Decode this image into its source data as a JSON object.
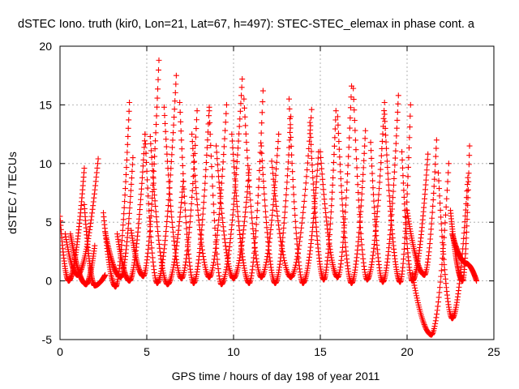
{
  "chart_data": {
    "type": "scatter",
    "title": "dSTEC Iono. truth (kir0, Lon=21, Lat=67, h=497): STEC-STEC_elemax in phase cont. a",
    "xlabel": "GPS time / hours of day 198 of year 2011",
    "ylabel": "dSTEC  / TECUs",
    "xlim": [
      0,
      25
    ],
    "ylim": [
      -5,
      20
    ],
    "x_ticks": [
      0,
      5,
      10,
      15,
      20,
      25
    ],
    "y_ticks": [
      -5,
      0,
      5,
      10,
      15,
      20
    ],
    "x_tick_labels": [
      "0",
      "5",
      "10",
      "15",
      "20",
      "25"
    ],
    "y_tick_labels": [
      "-5",
      "0",
      "5",
      "10",
      "15",
      "20"
    ],
    "grid": true,
    "marker": "+",
    "color": "#ff0000",
    "arcs": [
      {
        "start": 0.0,
        "min_t": 0.5,
        "min_v": 0.0,
        "end": 1.4,
        "start_v": 5.5,
        "end_v": 9.6
      },
      {
        "start": 0.3,
        "min_t": 1.0,
        "min_v": 0.5,
        "end": 2.2,
        "start_v": 4.0,
        "end_v": 10.4
      },
      {
        "start": 0.6,
        "min_t": 1.5,
        "min_v": -0.3,
        "end": 2.0,
        "start_v": 4.0,
        "end_v": 3.0
      },
      {
        "start": 1.4,
        "min_t": 2.0,
        "min_v": -0.4,
        "end": 2.6,
        "start_v": 6.5,
        "end_v": 0.5
      },
      {
        "start": 2.5,
        "min_t": 3.2,
        "min_v": -0.5,
        "end": 4.0,
        "start_v": 5.8,
        "end_v": 15.2
      },
      {
        "start": 2.6,
        "min_t": 3.5,
        "min_v": 0.3,
        "end": 4.2,
        "start_v": 4.2,
        "end_v": 10.5
      },
      {
        "start": 3.3,
        "min_t": 4.0,
        "min_v": 0.0,
        "end": 4.9,
        "start_v": 4.0,
        "end_v": 12.5
      },
      {
        "start": 4.1,
        "min_t": 4.8,
        "min_v": 0.4,
        "end": 5.7,
        "start_v": 4.3,
        "end_v": 18.8
      },
      {
        "start": 4.9,
        "min_t": 5.6,
        "min_v": -0.2,
        "end": 6.7,
        "start_v": 12.5,
        "end_v": 17.5
      },
      {
        "start": 5.2,
        "min_t": 6.2,
        "min_v": -0.3,
        "end": 7.1,
        "start_v": 12.3,
        "end_v": 8.5
      },
      {
        "start": 6.0,
        "min_t": 7.0,
        "min_v": 0.2,
        "end": 7.9,
        "start_v": 14.8,
        "end_v": 14.5
      },
      {
        "start": 6.9,
        "min_t": 7.7,
        "min_v": -0.2,
        "end": 8.6,
        "start_v": 15.2,
        "end_v": 14.8
      },
      {
        "start": 7.6,
        "min_t": 8.6,
        "min_v": 0.3,
        "end": 9.6,
        "start_v": 12.5,
        "end_v": 15.0
      },
      {
        "start": 8.6,
        "min_t": 9.3,
        "min_v": -0.3,
        "end": 10.5,
        "start_v": 14.5,
        "end_v": 17.2
      },
      {
        "start": 9.0,
        "min_t": 10.0,
        "min_v": 0.2,
        "end": 10.9,
        "start_v": 11.5,
        "end_v": 9.5
      },
      {
        "start": 9.9,
        "min_t": 10.9,
        "min_v": -0.2,
        "end": 11.7,
        "start_v": 12.5,
        "end_v": 16.2
      },
      {
        "start": 10.6,
        "min_t": 11.6,
        "min_v": 0.3,
        "end": 12.6,
        "start_v": 15.5,
        "end_v": 12.5
      },
      {
        "start": 11.6,
        "min_t": 12.4,
        "min_v": -0.2,
        "end": 13.3,
        "start_v": 11.5,
        "end_v": 14.0
      },
      {
        "start": 12.2,
        "min_t": 13.3,
        "min_v": 0.3,
        "end": 14.5,
        "start_v": 10.2,
        "end_v": 14.6
      },
      {
        "start": 13.2,
        "min_t": 14.0,
        "min_v": -0.2,
        "end": 14.9,
        "start_v": 15.5,
        "end_v": 11.0
      },
      {
        "start": 14.4,
        "min_t": 15.2,
        "min_v": 0.1,
        "end": 15.9,
        "start_v": 13.5,
        "end_v": 14.5
      },
      {
        "start": 15.0,
        "min_t": 16.0,
        "min_v": 0.3,
        "end": 16.8,
        "start_v": 11.0,
        "end_v": 16.6
      },
      {
        "start": 16.0,
        "min_t": 16.8,
        "min_v": -0.2,
        "end": 17.6,
        "start_v": 14.0,
        "end_v": 12.8
      },
      {
        "start": 16.9,
        "min_t": 17.7,
        "min_v": 0.1,
        "end": 18.7,
        "start_v": 16.4,
        "end_v": 15.2
      },
      {
        "start": 17.9,
        "min_t": 18.6,
        "min_v": -0.1,
        "end": 19.5,
        "start_v": 11.8,
        "end_v": 15.8
      },
      {
        "start": 18.7,
        "min_t": 19.6,
        "min_v": -0.1,
        "end": 20.2,
        "start_v": 14.2,
        "end_v": 15.0
      },
      {
        "start": 19.7,
        "min_t": 20.3,
        "min_v": 0.0,
        "end": 21.2,
        "start_v": 11.0,
        "end_v": 10.8
      },
      {
        "start": 20.0,
        "min_t": 21.0,
        "min_v": 0.5,
        "end": 21.7,
        "start_v": 6.0,
        "end_v": 12.0
      },
      {
        "start": 20.3,
        "min_t": 21.4,
        "min_v": -4.6,
        "end": 22.4,
        "start_v": 0.6,
        "end_v": 10.0
      },
      {
        "start": 21.8,
        "min_t": 22.6,
        "min_v": -3.2,
        "end": 23.5,
        "start_v": 9.2,
        "end_v": 8.8
      },
      {
        "start": 22.5,
        "min_t": 23.2,
        "min_v": 0.0,
        "end": 23.6,
        "start_v": 6.0,
        "end_v": 11.5
      },
      {
        "start": 22.6,
        "min_t": 23.4,
        "min_v": 1.5,
        "end": 24.0,
        "start_v": 4.0,
        "end_v": 0.0
      }
    ]
  }
}
